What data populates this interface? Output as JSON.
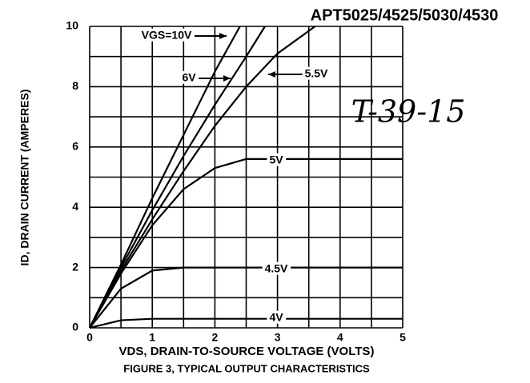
{
  "chart_data": {
    "type": "line",
    "title": "APT5025/4525/5030/4530",
    "annotation": "T-39-15",
    "caption": "FIGURE 3, TYPICAL OUTPUT CHARACTERISTICS",
    "xlabel": "VDS, DRAIN-TO-SOURCE VOLTAGE (VOLTS)",
    "ylabel": "ID, DRAIN CURRENT (AMPERES)",
    "xlim": [
      0,
      5
    ],
    "ylim": [
      0,
      10
    ],
    "xticks": [
      0,
      1,
      2,
      3,
      4,
      5
    ],
    "yticks": [
      0,
      2,
      4,
      6,
      8,
      10
    ],
    "grid": true,
    "series": [
      {
        "name": "VGS=10V",
        "color": "#000000",
        "x": [
          0,
          0.5,
          1,
          1.5,
          2,
          2.4
        ],
        "values": [
          0,
          2.1,
          4.3,
          6.4,
          8.5,
          10
        ]
      },
      {
        "name": "6V",
        "color": "#000000",
        "x": [
          0,
          0.5,
          1,
          1.5,
          2,
          2.5,
          2.8
        ],
        "values": [
          0,
          2.0,
          3.9,
          5.7,
          7.4,
          9.0,
          10
        ]
      },
      {
        "name": "5.5V",
        "color": "#000000",
        "x": [
          0,
          0.5,
          1,
          1.5,
          2,
          2.5,
          3,
          3.6
        ],
        "values": [
          0,
          1.9,
          3.6,
          5.2,
          6.7,
          8.0,
          9.1,
          10
        ]
      },
      {
        "name": "5V",
        "color": "#000000",
        "x": [
          0,
          0.5,
          1,
          1.5,
          2,
          2.5,
          3,
          5
        ],
        "values": [
          0,
          1.8,
          3.4,
          4.6,
          5.3,
          5.6,
          5.6,
          5.6
        ]
      },
      {
        "name": "4.5V",
        "color": "#000000",
        "x": [
          0,
          0.5,
          1,
          1.5,
          2,
          5
        ],
        "values": [
          0,
          1.3,
          1.9,
          2.0,
          2.0,
          2.0
        ]
      },
      {
        "name": "4V",
        "color": "#000000",
        "x": [
          0,
          0.5,
          1,
          5
        ],
        "values": [
          0,
          0.25,
          0.3,
          0.3
        ]
      }
    ]
  }
}
